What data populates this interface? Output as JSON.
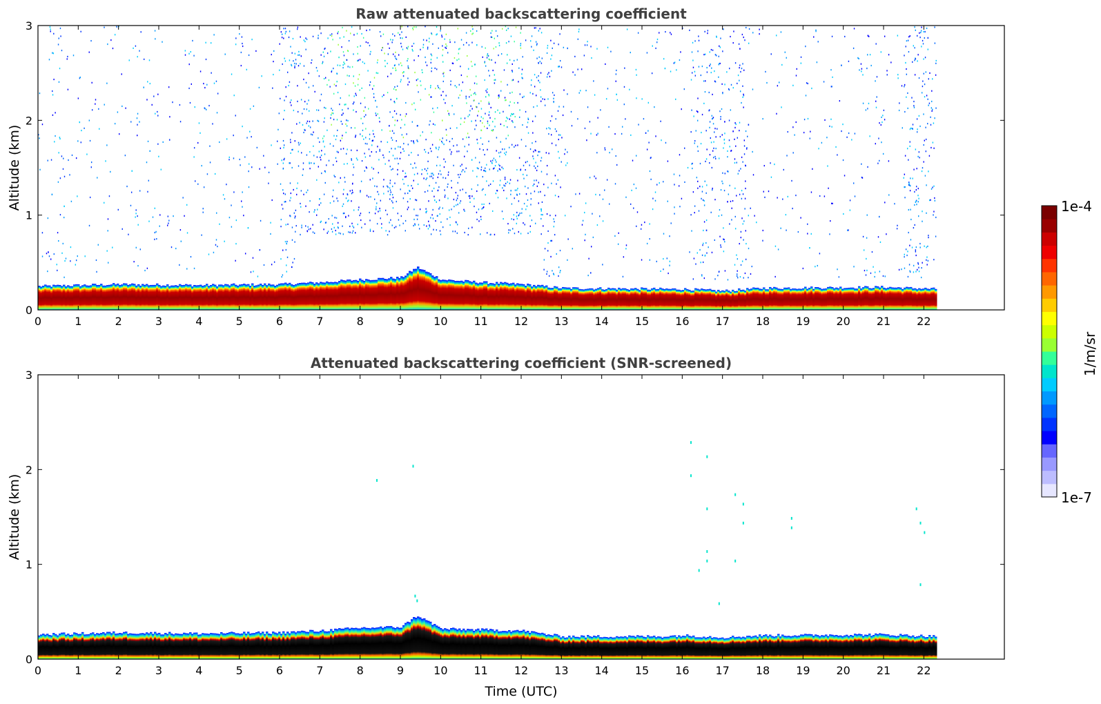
{
  "chart_data": [
    {
      "type": "heatmap",
      "id": "raw",
      "title": "Raw attenuated backscattering coefficient",
      "xlabel": "",
      "ylabel": "Altitude (km)",
      "xlim": [
        0,
        24
      ],
      "ylim": [
        0,
        3
      ],
      "data_end_time": 22.3,
      "xticks": [
        "0",
        "1",
        "2",
        "3",
        "4",
        "5",
        "6",
        "7",
        "8",
        "9",
        "10",
        "11",
        "12",
        "13",
        "14",
        "15",
        "16",
        "17",
        "18",
        "19",
        "20",
        "21",
        "22"
      ],
      "yticks": [
        "0",
        "1",
        "2",
        "3"
      ],
      "layer_top_km": [
        {
          "t": 0,
          "h": 0.25
        },
        {
          "t": 2,
          "h": 0.27
        },
        {
          "t": 4,
          "h": 0.26
        },
        {
          "t": 6,
          "h": 0.27
        },
        {
          "t": 7,
          "h": 0.29
        },
        {
          "t": 8,
          "h": 0.32
        },
        {
          "t": 9,
          "h": 0.34
        },
        {
          "t": 9.4,
          "h": 0.45
        },
        {
          "t": 10,
          "h": 0.32
        },
        {
          "t": 11,
          "h": 0.29
        },
        {
          "t": 12,
          "h": 0.27
        },
        {
          "t": 13,
          "h": 0.23
        },
        {
          "t": 15.5,
          "h": 0.22
        },
        {
          "t": 16,
          "h": 0.22
        },
        {
          "t": 17,
          "h": 0.2
        },
        {
          "t": 18,
          "h": 0.23
        },
        {
          "t": 21,
          "h": 0.24
        },
        {
          "t": 22.3,
          "h": 0.22
        }
      ],
      "notes": "Strong near-surface layer up to ~0.2-0.3 km; scattered noise aloft, densest 6-13 UTC and 16-18 UTC and 21.5-22.3 UTC"
    },
    {
      "type": "heatmap",
      "id": "snr",
      "title": "Attenuated backscattering coefficient (SNR-screened)",
      "xlabel": "Time (UTC)",
      "ylabel": "Altitude (km)",
      "xlim": [
        0,
        24
      ],
      "ylim": [
        0,
        3
      ],
      "data_end_time": 22.3,
      "xticks": [
        "0",
        "1",
        "2",
        "3",
        "4",
        "5",
        "6",
        "7",
        "8",
        "9",
        "10",
        "11",
        "12",
        "13",
        "14",
        "15",
        "16",
        "17",
        "18",
        "19",
        "20",
        "21",
        "22"
      ],
      "yticks": [
        "0",
        "1",
        "2",
        "3"
      ],
      "layer_top_km": [
        {
          "t": 0,
          "h": 0.26
        },
        {
          "t": 2,
          "h": 0.28
        },
        {
          "t": 4,
          "h": 0.27
        },
        {
          "t": 6,
          "h": 0.28
        },
        {
          "t": 7,
          "h": 0.3
        },
        {
          "t": 8,
          "h": 0.33
        },
        {
          "t": 9,
          "h": 0.34
        },
        {
          "t": 9.4,
          "h": 0.46
        },
        {
          "t": 10,
          "h": 0.32
        },
        {
          "t": 11,
          "h": 0.31
        },
        {
          "t": 12,
          "h": 0.3
        },
        {
          "t": 13,
          "h": 0.24
        },
        {
          "t": 15.5,
          "h": 0.24
        },
        {
          "t": 16,
          "h": 0.25
        },
        {
          "t": 17,
          "h": 0.23
        },
        {
          "t": 18,
          "h": 0.25
        },
        {
          "t": 21,
          "h": 0.26
        },
        {
          "t": 22.3,
          "h": 0.24
        }
      ],
      "isolated_points": [
        {
          "t": 9.35,
          "h": 0.68
        },
        {
          "t": 9.4,
          "h": 0.63
        },
        {
          "t": 16.2,
          "h": 2.3
        },
        {
          "t": 16.2,
          "h": 1.95
        },
        {
          "t": 16.6,
          "h": 2.15
        },
        {
          "t": 16.6,
          "h": 1.6
        },
        {
          "t": 16.6,
          "h": 1.15
        },
        {
          "t": 16.6,
          "h": 1.05
        },
        {
          "t": 17.3,
          "h": 1.75
        },
        {
          "t": 17.5,
          "h": 1.65
        },
        {
          "t": 17.5,
          "h": 1.45
        },
        {
          "t": 17.3,
          "h": 1.05
        },
        {
          "t": 16.9,
          "h": 0.6
        },
        {
          "t": 16.4,
          "h": 0.95
        },
        {
          "t": 18.7,
          "h": 1.5
        },
        {
          "t": 18.7,
          "h": 1.4
        },
        {
          "t": 21.8,
          "h": 1.6
        },
        {
          "t": 21.9,
          "h": 1.45
        },
        {
          "t": 22.0,
          "h": 1.35
        },
        {
          "t": 21.9,
          "h": 0.8
        },
        {
          "t": 8.4,
          "h": 1.9
        },
        {
          "t": 9.3,
          "h": 2.05
        }
      ]
    }
  ],
  "colorbar": {
    "max_label": "1e-4",
    "min_label": "1e-7",
    "unit_label": "1/m/sr",
    "colors": [
      "#e6e6ff",
      "#bdbdff",
      "#9999ff",
      "#6666ff",
      "#0000ff",
      "#0033ff",
      "#0066ff",
      "#0099ff",
      "#00ccff",
      "#00e5cc",
      "#33ff99",
      "#99ff33",
      "#ccff00",
      "#ffff00",
      "#ffcc00",
      "#ff9900",
      "#ff6600",
      "#ff3300",
      "#ee0000",
      "#cc0000",
      "#990000",
      "#7a0000"
    ]
  }
}
